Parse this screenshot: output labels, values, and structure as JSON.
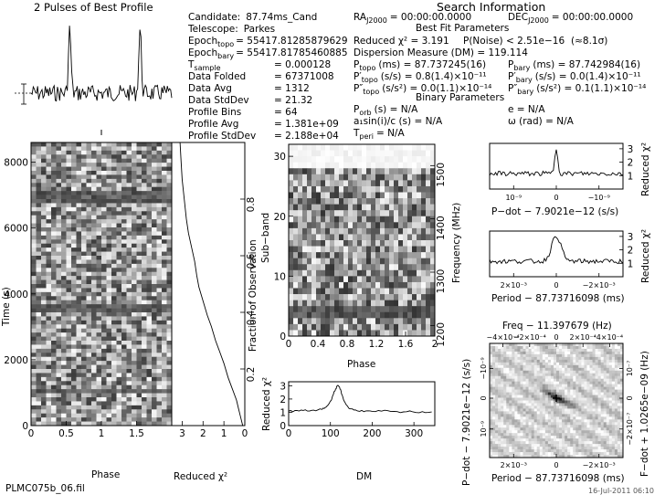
{
  "header": {
    "pulses_title": "2 Pulses of Best Profile",
    "search_info_title": "Search Information",
    "best_fit_title": "Best Fit Parameters",
    "binary_title": "Binary Parameters",
    "filename": "PLMC075b_06.fil",
    "date": "16-Jul-2011 06:10"
  },
  "candidate_params": [
    {
      "label": "Candidate:",
      "value": "87.74ms_Cand"
    },
    {
      "label": "Telescope:",
      "value": "Parkes"
    },
    {
      "label": "Epoch",
      "sub": "topo",
      "value": "= 55417.81285879629"
    },
    {
      "label": "Epoch",
      "sub": "bary",
      "value": "= 55417.81785460885"
    },
    {
      "label": "T",
      "sub": "sample",
      "value": "0.000128"
    },
    {
      "label": "Data Folded",
      "value": "67371008"
    },
    {
      "label": "Data Avg",
      "value": "1312"
    },
    {
      "label": "Data StdDev",
      "value": "21.32"
    },
    {
      "label": "Profile Bins",
      "value": "64"
    },
    {
      "label": "Profile Avg",
      "value": "1.381e+09"
    },
    {
      "label": "Profile StdDev",
      "value": "2.188e+04"
    }
  ],
  "search_info": {
    "ra_label": "RA",
    "ra_sub": "J2000",
    "ra_value": "= 00:00:00.0000",
    "dec_label": "DEC",
    "dec_sub": "J2000",
    "dec_value": "= 00:00:00.0000"
  },
  "best_fit": {
    "reduced_chi2": "Reduced χ² = 3.191",
    "p_noise": "P(Noise) < 2.51e−16",
    "sigma": "(≈8.1σ)",
    "dm": "Dispersion Measure (DM) = 119.114",
    "p_topo": "(ms) = 87.737245(16)",
    "p_bary": "(ms) = 87.742984(16)",
    "pdot_topo": "(s/s) = 0.8(1.4)×10⁻¹¹",
    "pdot_bary": "(s/s) = 0.0(1.4)×10⁻¹¹",
    "pdd_topo": "(s/s²) = 0.0(1.1)×10⁻¹⁴",
    "pdd_bary": "(s/s²) = 0.1(1.1)×10⁻¹⁴"
  },
  "binary": {
    "porb": "(s) = N/A",
    "asini": "a₁sin(i)/c (s) = N/A",
    "tperi": "= N/A",
    "ecc": "e = N/A",
    "omega": "ω (rad) = N/A"
  },
  "chart_data": [
    {
      "type": "line",
      "name": "pulse-profile",
      "title": "2 Pulses of Best Profile",
      "x": [
        0,
        1
      ],
      "peak_phases": [
        0.55,
        1.55
      ],
      "xlim": [
        0,
        2
      ]
    },
    {
      "type": "heatmap",
      "name": "time-vs-phase",
      "xlabel": "Phase",
      "ylabel": "Time (s)",
      "xlim": [
        0,
        2
      ],
      "ylim": [
        0,
        8600
      ],
      "x_ticks": [
        0,
        0.5,
        1,
        1.5
      ],
      "y_ticks": [
        0,
        2000,
        4000,
        6000,
        8000
      ]
    },
    {
      "type": "line",
      "name": "reduced-chi2-vs-time",
      "xlabel": "Reduced χ²",
      "ylabel": "Fraction of Observation",
      "xlim": [
        3.5,
        0
      ],
      "ylim": [
        0,
        1
      ],
      "x_ticks": [
        3,
        2,
        1,
        0
      ],
      "y_ticks": [
        0.2,
        0.4,
        0.6,
        0.8
      ],
      "x": [
        0.1,
        0.2,
        0.3,
        0.4,
        0.6,
        0.8,
        1.0,
        1.2,
        1.4,
        1.6,
        1.8,
        2.0,
        2.2,
        2.3,
        2.4,
        2.55,
        2.7,
        2.8,
        2.9,
        3.0,
        3.05,
        3.1
      ],
      "y": [
        0.0,
        0.03,
        0.06,
        0.09,
        0.13,
        0.17,
        0.22,
        0.26,
        0.3,
        0.35,
        0.39,
        0.44,
        0.49,
        0.53,
        0.58,
        0.63,
        0.68,
        0.73,
        0.8,
        0.87,
        0.93,
        1.0
      ]
    },
    {
      "type": "heatmap",
      "name": "subband-vs-phase",
      "xlabel": "Phase",
      "ylabel": "Sub−band",
      "ylabel_right": "Frequency (MHz)",
      "xlim": [
        0,
        2
      ],
      "ylim": [
        0,
        32
      ],
      "x_ticks": [
        0,
        0.4,
        0.8,
        1.2,
        1.6,
        2
      ],
      "y_ticks": [
        0,
        10,
        20,
        30
      ],
      "freq_ticks": [
        1200,
        1300,
        1400,
        1500
      ]
    },
    {
      "type": "line",
      "name": "reduced-chi2-vs-dm",
      "xlabel": "DM",
      "ylabel": "Reduced χ²",
      "xlim": [
        0,
        350
      ],
      "ylim": [
        0,
        3.3
      ],
      "x_ticks": [
        0,
        100,
        200,
        300
      ],
      "y_ticks": [
        0,
        1,
        2,
        3
      ],
      "x": [
        0,
        20,
        40,
        60,
        80,
        90,
        100,
        105,
        110,
        115,
        119,
        123,
        128,
        135,
        145,
        160,
        180,
        200,
        230,
        260,
        290,
        320,
        350
      ],
      "y": [
        1.1,
        1.1,
        1.15,
        1.1,
        1.25,
        1.4,
        1.8,
        2.2,
        2.6,
        2.9,
        3.0,
        2.8,
        2.3,
        1.7,
        1.3,
        1.15,
        1.1,
        1.05,
        1.1,
        1.0,
        1.05,
        1.0,
        1.05
      ]
    },
    {
      "type": "line",
      "name": "reduced-chi2-vs-pdot",
      "xlabel": "P−dot − 7.9021e−12 (s/s)",
      "ylabel": "Reduced χ²",
      "y_ticks": [
        1,
        2,
        3
      ],
      "x_tick_labels": [
        "10⁻⁹",
        "0",
        "−10⁻⁹"
      ]
    },
    {
      "type": "line",
      "name": "reduced-chi2-vs-period",
      "xlabel": "Period − 87.73716098 (ms)",
      "ylabel": "Reduced χ²",
      "y_ticks": [
        1,
        2,
        3
      ],
      "x_tick_labels": [
        "2×10⁻³",
        "0",
        "−2×10⁻³"
      ]
    },
    {
      "type": "heatmap",
      "name": "period-pdot-plane",
      "title": "Freq − 11.397679 (Hz)",
      "xlabel": "Period − 87.73716098 (ms)",
      "ylabel": "P−dot − 7.9021e−12 (s/s)",
      "ylabel_right": "F−dot + 1.0265e−09 (Hz)",
      "top_tick_labels": [
        "−4×10⁻⁴",
        "−2×10⁻⁴",
        "0",
        "2×10⁻⁴",
        "4×10⁻⁴"
      ],
      "bottom_tick_labels": [
        "2×10⁻³",
        "0",
        "−2×10⁻³"
      ],
      "left_tick_labels": [
        "−10⁻⁹",
        "0",
        "10⁻⁹"
      ],
      "right_tick_labels": [
        "10⁻⁷",
        "0",
        "−2×10⁻⁷"
      ]
    }
  ]
}
